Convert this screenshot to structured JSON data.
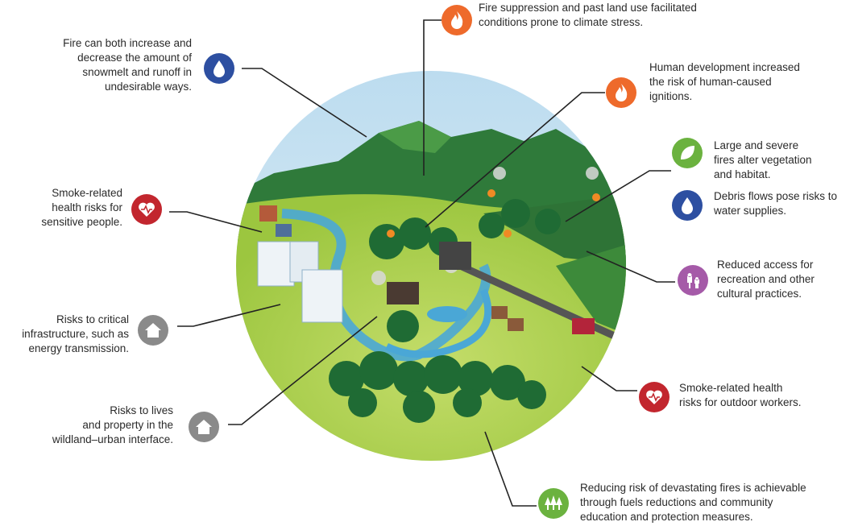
{
  "callouts": [
    {
      "lines": [
        "Fire suppression and past land use facilitated",
        "conditions prone to climate stress."
      ]
    },
    {
      "lines": [
        "Fire can both increase and",
        "decrease the amount of",
        "snowmelt and runoff in",
        "undesirable ways."
      ]
    },
    {
      "lines": [
        "Human development increased",
        "the risk of human-caused",
        "ignitions."
      ]
    },
    {
      "lines": [
        "Large and severe",
        "fires alter vegetation",
        "and habitat."
      ]
    },
    {
      "lines": [
        "Debris flows pose risks to",
        "water supplies."
      ]
    },
    {
      "lines": [
        "Smoke-related",
        "health risks for",
        "sensitive people."
      ]
    },
    {
      "lines": [
        "Reduced access for",
        "recreation and other",
        "cultural practices."
      ]
    },
    {
      "lines": [
        "Risks to critical",
        "infrastructure, such as",
        "energy transmission."
      ]
    },
    {
      "lines": [
        "Risks to lives",
        "and property in the",
        "wildland–urban interface."
      ]
    },
    {
      "lines": [
        "Smoke-related health",
        "risks for outdoor workers."
      ]
    },
    {
      "lines": [
        "Reducing risk of devastating fires is achievable",
        "through fuels reductions and community",
        "education and protection measures."
      ]
    }
  ]
}
